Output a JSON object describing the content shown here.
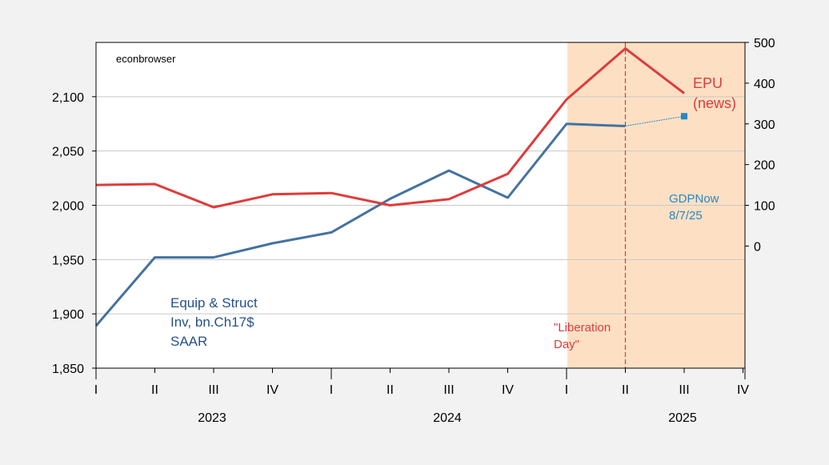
{
  "chart_data": {
    "type": "line",
    "watermark": "econbrowser",
    "x": [
      "2023 I",
      "2023 II",
      "2023 III",
      "2023 IV",
      "2024 I",
      "2024 II",
      "2024 III",
      "2024 IV",
      "2025 I",
      "2025 II",
      "2025 III",
      "2025 IV"
    ],
    "quarter_labels": [
      "I",
      "II",
      "III",
      "IV",
      "I",
      "II",
      "III",
      "IV",
      "I",
      "II",
      "III",
      "IV"
    ],
    "year_labels": [
      "2023",
      "2024",
      "2025"
    ],
    "left_axis": {
      "ylim": [
        1850,
        2150
      ],
      "ticks": [
        1850,
        1900,
        1950,
        2000,
        2050,
        2100
      ],
      "tick_labels": [
        "1,850",
        "1,900",
        "1,950",
        "2,000",
        "2,050",
        "2,100"
      ]
    },
    "right_axis": {
      "ylim": [
        -300,
        500
      ],
      "ticks": [
        0,
        100,
        200,
        300,
        400,
        500
      ],
      "tick_labels": [
        "0",
        "100",
        "200",
        "300",
        "400",
        "500"
      ]
    },
    "series": [
      {
        "name": "Equip & Struct Inv, bn.Ch17$ SAAR",
        "label_lines": [
          "Equip & Struct",
          "Inv, bn.Ch17$",
          "SAAR"
        ],
        "axis": "left",
        "color": "#4472a0",
        "values": [
          1889,
          1952,
          1952,
          1965,
          1975,
          2006,
          2032,
          2007,
          2075,
          2073,
          null,
          null
        ]
      },
      {
        "name": "EPU (news)",
        "label_lines": [
          "EPU",
          "(news)"
        ],
        "axis": "right",
        "color": "#e03a3a",
        "values": [
          150,
          152,
          95,
          127,
          130,
          100,
          115,
          177,
          360,
          485,
          375,
          null
        ]
      }
    ],
    "nowcast": {
      "label_lines": [
        "GDPNow",
        "8/7/25"
      ],
      "color": "#2b86c2",
      "from_index": 9,
      "from_value": 2073,
      "to_index": 10,
      "to_value": 2082
    },
    "shaded_region": {
      "from_index": 8,
      "to_index": 11,
      "color": "#fde0c4"
    },
    "event_line": {
      "index": 9,
      "color": "#d93a3a",
      "label_lines": [
        "\"Liberation",
        "Day\""
      ]
    },
    "grid": true,
    "colors": {
      "plot_background": "#ffffff",
      "page_background": "#f2f2f2",
      "grid": "#c8c8c8"
    }
  }
}
